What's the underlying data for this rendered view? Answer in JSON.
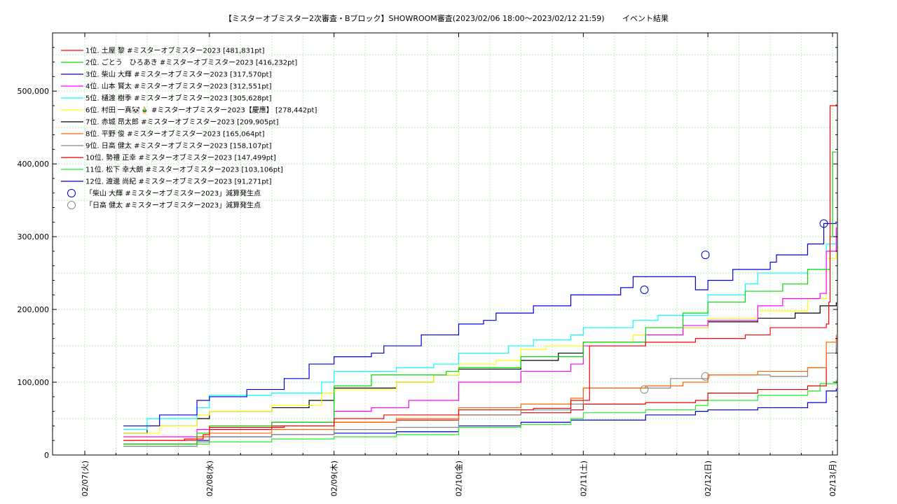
{
  "chart_data": {
    "type": "line",
    "title": "【ミスターオブミスター2次審査・Bブロック】SHOWROOM審査(2023/02/06 18:00～2023/02/12 21:59)",
    "subtitle": "イベント結果",
    "xlim": [
      0,
      6.0
    ],
    "ylim": [
      0,
      580000
    ],
    "x_ticks": [
      {
        "x": 0,
        "label": "02/07(火)"
      },
      {
        "x": 1,
        "label": "02/08(水)"
      },
      {
        "x": 2,
        "label": "02/09(木)"
      },
      {
        "x": 3,
        "label": "02/10(金)"
      },
      {
        "x": 4,
        "label": "02/11(土)"
      },
      {
        "x": 5,
        "label": "02/12(日)"
      },
      {
        "x": 6,
        "label": "02/13(月)"
      }
    ],
    "y_ticks": [
      {
        "y": 0,
        "label": "0"
      },
      {
        "y": 100000,
        "label": "100,000"
      },
      {
        "y": 200000,
        "label": "200,000"
      },
      {
        "y": 300000,
        "label": "300,000"
      },
      {
        "y": 400000,
        "label": "400,000"
      },
      {
        "y": 500000,
        "label": "500,000"
      }
    ],
    "grid": true,
    "legend_position": "top-left",
    "series": [
      {
        "name": "1位. 土屋 黎 #ミスターオブミスター2023 [481,831pt]",
        "color": "#ff0000",
        "points": [
          [
            0.31,
            20000
          ],
          [
            0.8,
            22000
          ],
          [
            0.95,
            28000
          ],
          [
            1.0,
            38000
          ],
          [
            1.6,
            40000
          ],
          [
            2.0,
            50000
          ],
          [
            2.4,
            55000
          ],
          [
            3.0,
            62000
          ],
          [
            3.6,
            64000
          ],
          [
            3.9,
            75000
          ],
          [
            4.05,
            150000
          ],
          [
            4.5,
            155000
          ],
          [
            4.9,
            160000
          ],
          [
            5.3,
            165000
          ],
          [
            5.5,
            175000
          ],
          [
            5.95,
            180000
          ],
          [
            5.97,
            210000
          ],
          [
            5.98,
            480000
          ],
          [
            6.03,
            481831
          ]
        ]
      },
      {
        "name": "2位. ごとう　ひろあき #ミスターオブミスター2023 [416,232pt]",
        "color": "#00dd00",
        "points": [
          [
            0.31,
            15000
          ],
          [
            0.9,
            30000
          ],
          [
            1.0,
            40000
          ],
          [
            1.5,
            45000
          ],
          [
            2.0,
            95000
          ],
          [
            2.3,
            110000
          ],
          [
            2.9,
            115000
          ],
          [
            3.0,
            120000
          ],
          [
            3.5,
            135000
          ],
          [
            4.0,
            155000
          ],
          [
            4.5,
            175000
          ],
          [
            4.8,
            195000
          ],
          [
            5.0,
            210000
          ],
          [
            5.3,
            225000
          ],
          [
            5.6,
            235000
          ],
          [
            5.8,
            255000
          ],
          [
            5.98,
            300000
          ],
          [
            6.0,
            416232
          ],
          [
            6.03,
            416232
          ]
        ]
      },
      {
        "name": "3位. 柴山 大輝 #ミスターオブミスター2023 [317,570pt]",
        "color": "#0000dd",
        "points": [
          [
            0.31,
            40000
          ],
          [
            0.6,
            55000
          ],
          [
            0.9,
            75000
          ],
          [
            1.0,
            80000
          ],
          [
            1.3,
            90000
          ],
          [
            1.6,
            105000
          ],
          [
            1.8,
            125000
          ],
          [
            2.0,
            135000
          ],
          [
            2.3,
            140000
          ],
          [
            2.4,
            150000
          ],
          [
            2.7,
            165000
          ],
          [
            3.0,
            180000
          ],
          [
            3.2,
            185000
          ],
          [
            3.3,
            195000
          ],
          [
            3.6,
            205000
          ],
          [
            3.9,
            220000
          ],
          [
            4.3,
            230000
          ],
          [
            4.4,
            245000
          ],
          [
            4.9,
            227000
          ],
          [
            5.0,
            240000
          ],
          [
            5.2,
            255000
          ],
          [
            5.5,
            265000
          ],
          [
            5.55,
            275000
          ],
          [
            5.6,
            275000
          ],
          [
            5.8,
            290000
          ],
          [
            5.93,
            318000
          ],
          [
            6.03,
            317570
          ]
        ]
      },
      {
        "name": "4位. 山本 賢太 #ミスターオブミスター2023 [312,551pt]",
        "color": "#ff00ff",
        "points": [
          [
            0.31,
            25000
          ],
          [
            0.9,
            35000
          ],
          [
            1.0,
            40000
          ],
          [
            1.5,
            45000
          ],
          [
            2.0,
            60000
          ],
          [
            2.3,
            65000
          ],
          [
            2.6,
            75000
          ],
          [
            3.0,
            100000
          ],
          [
            3.5,
            115000
          ],
          [
            3.9,
            125000
          ],
          [
            4.0,
            150000
          ],
          [
            4.5,
            165000
          ],
          [
            4.8,
            178000
          ],
          [
            5.0,
            185000
          ],
          [
            5.4,
            205000
          ],
          [
            5.6,
            215000
          ],
          [
            5.9,
            222000
          ],
          [
            5.95,
            280000
          ],
          [
            6.03,
            312551
          ]
        ]
      },
      {
        "name": "5位. 樋渡 樹季 #ミスターオブミスター2023 [305,628pt]",
        "color": "#00ffff",
        "points": [
          [
            0.31,
            35000
          ],
          [
            0.5,
            50000
          ],
          [
            0.9,
            65000
          ],
          [
            1.0,
            82000
          ],
          [
            1.5,
            85000
          ],
          [
            1.9,
            100000
          ],
          [
            2.0,
            115000
          ],
          [
            2.5,
            120000
          ],
          [
            2.8,
            125000
          ],
          [
            3.0,
            140000
          ],
          [
            3.4,
            150000
          ],
          [
            3.6,
            158000
          ],
          [
            3.9,
            165000
          ],
          [
            4.0,
            175000
          ],
          [
            4.4,
            185000
          ],
          [
            4.6,
            192000
          ],
          [
            5.0,
            220000
          ],
          [
            5.3,
            235000
          ],
          [
            5.4,
            250000
          ],
          [
            5.8,
            255000
          ],
          [
            5.95,
            290000
          ],
          [
            6.03,
            305628
          ]
        ]
      },
      {
        "name": "6位. 村田 一真🐼🎍 #ミスターオブミスター2023【慶應】 [278,442pt]",
        "color": "#ffff00",
        "points": [
          [
            0.31,
            30000
          ],
          [
            0.6,
            40000
          ],
          [
            0.9,
            55000
          ],
          [
            1.0,
            60000
          ],
          [
            1.5,
            68000
          ],
          [
            1.9,
            85000
          ],
          [
            2.0,
            90000
          ],
          [
            2.5,
            100000
          ],
          [
            2.8,
            110000
          ],
          [
            3.0,
            125000
          ],
          [
            3.3,
            130000
          ],
          [
            3.5,
            145000
          ],
          [
            3.7,
            150000
          ],
          [
            4.0,
            155000
          ],
          [
            4.4,
            165000
          ],
          [
            4.8,
            175000
          ],
          [
            5.0,
            188000
          ],
          [
            5.4,
            198000
          ],
          [
            5.8,
            215000
          ],
          [
            5.95,
            270000
          ],
          [
            6.03,
            278442
          ]
        ]
      },
      {
        "name": "7位. 赤城 昂太郎 #ミスターオブミスター2023 [209,905pt]",
        "color": "#000000",
        "points": [
          [
            0.31,
            30000
          ],
          [
            0.5,
            40000
          ],
          [
            0.9,
            50000
          ],
          [
            1.0,
            60000
          ],
          [
            1.5,
            65000
          ],
          [
            1.8,
            75000
          ],
          [
            2.0,
            92000
          ],
          [
            2.5,
            100000
          ],
          [
            2.8,
            110000
          ],
          [
            3.0,
            118000
          ],
          [
            3.5,
            130000
          ],
          [
            3.8,
            140000
          ],
          [
            4.0,
            155000
          ],
          [
            4.5,
            165000
          ],
          [
            4.8,
            175000
          ],
          [
            5.0,
            183000
          ],
          [
            5.4,
            188000
          ],
          [
            5.7,
            195000
          ],
          [
            5.9,
            205000
          ],
          [
            6.03,
            209905
          ]
        ]
      },
      {
        "name": "8位. 平野 俊 #ミスターオブミスター2023 [165,064pt]",
        "color": "#ff6600",
        "points": [
          [
            0.31,
            15000
          ],
          [
            0.9,
            25000
          ],
          [
            1.0,
            30000
          ],
          [
            1.5,
            35000
          ],
          [
            2.0,
            45000
          ],
          [
            2.5,
            50000
          ],
          [
            3.0,
            65000
          ],
          [
            3.5,
            70000
          ],
          [
            3.9,
            78000
          ],
          [
            4.0,
            92000
          ],
          [
            4.5,
            95000
          ],
          [
            4.8,
            100000
          ],
          [
            5.0,
            110000
          ],
          [
            5.4,
            115000
          ],
          [
            5.8,
            120000
          ],
          [
            5.95,
            155000
          ],
          [
            6.03,
            165064
          ]
        ]
      },
      {
        "name": "9位. 日高 健太 #ミスターオブミスター2023 [158,107pt]",
        "color": "#888888",
        "points": [
          [
            0.31,
            12000
          ],
          [
            0.9,
            18000
          ],
          [
            1.0,
            25000
          ],
          [
            1.5,
            28000
          ],
          [
            2.0,
            35000
          ],
          [
            2.5,
            38000
          ],
          [
            3.0,
            55000
          ],
          [
            3.5,
            62000
          ],
          [
            3.9,
            70000
          ],
          [
            4.0,
            92000
          ],
          [
            4.5,
            92000
          ],
          [
            4.7,
            105000
          ],
          [
            5.0,
            110000
          ],
          [
            5.5,
            108000
          ],
          [
            5.8,
            120000
          ],
          [
            5.95,
            140000
          ],
          [
            6.03,
            158107
          ]
        ]
      },
      {
        "name": "10位. 勢禮 正幸 #ミスターオブミスター2023 [147,499pt]",
        "color": "#dd0000",
        "points": [
          [
            0.31,
            20000
          ],
          [
            0.9,
            25000
          ],
          [
            1.0,
            35000
          ],
          [
            1.5,
            40000
          ],
          [
            2.0,
            45000
          ],
          [
            2.5,
            48000
          ],
          [
            3.0,
            55000
          ],
          [
            3.5,
            58000
          ],
          [
            3.9,
            62000
          ],
          [
            4.0,
            70000
          ],
          [
            4.5,
            72000
          ],
          [
            4.9,
            75000
          ],
          [
            5.0,
            85000
          ],
          [
            5.4,
            90000
          ],
          [
            5.8,
            95000
          ],
          [
            5.95,
            140000
          ],
          [
            6.03,
            147499
          ]
        ]
      },
      {
        "name": "11位. 松下 幸大朗 #ミスターオブミスター2023 [103,106pt]",
        "color": "#22ee22",
        "points": [
          [
            0.31,
            12000
          ],
          [
            0.9,
            15000
          ],
          [
            1.0,
            18000
          ],
          [
            1.5,
            22000
          ],
          [
            2.0,
            25000
          ],
          [
            2.5,
            28000
          ],
          [
            3.0,
            38000
          ],
          [
            3.5,
            42000
          ],
          [
            3.9,
            50000
          ],
          [
            4.0,
            58000
          ],
          [
            4.5,
            62000
          ],
          [
            4.9,
            68000
          ],
          [
            5.0,
            75000
          ],
          [
            5.4,
            82000
          ],
          [
            5.8,
            88000
          ],
          [
            5.9,
            98000
          ],
          [
            6.03,
            103106
          ]
        ]
      },
      {
        "name": "12位. 渡邊 尚紀 #ミスターオブミスター2023 [91,271pt]",
        "color": "#0000cc",
        "points": [
          [
            0.31,
            15000
          ],
          [
            0.9,
            20000
          ],
          [
            1.0,
            25000
          ],
          [
            1.5,
            28000
          ],
          [
            2.0,
            30000
          ],
          [
            2.5,
            32000
          ],
          [
            3.0,
            40000
          ],
          [
            3.5,
            45000
          ],
          [
            3.9,
            48000
          ],
          [
            4.0,
            48000
          ],
          [
            4.5,
            55000
          ],
          [
            4.9,
            60000
          ],
          [
            5.0,
            62000
          ],
          [
            5.4,
            65000
          ],
          [
            5.8,
            72000
          ],
          [
            5.95,
            88000
          ],
          [
            6.03,
            91271
          ]
        ]
      }
    ],
    "annotations": [
      {
        "name": "「柴山 大輝 #ミスターオブミスター2023」減算発生点",
        "color": "#0000dd",
        "points": [
          [
            4.49,
            227000
          ],
          [
            4.98,
            275000
          ],
          [
            5.93,
            318000
          ]
        ]
      },
      {
        "name": "「日高 健太 #ミスターオブミスター2023」減算発生点",
        "color": "#888888",
        "points": [
          [
            4.49,
            90000
          ],
          [
            4.98,
            108000
          ]
        ]
      }
    ]
  }
}
